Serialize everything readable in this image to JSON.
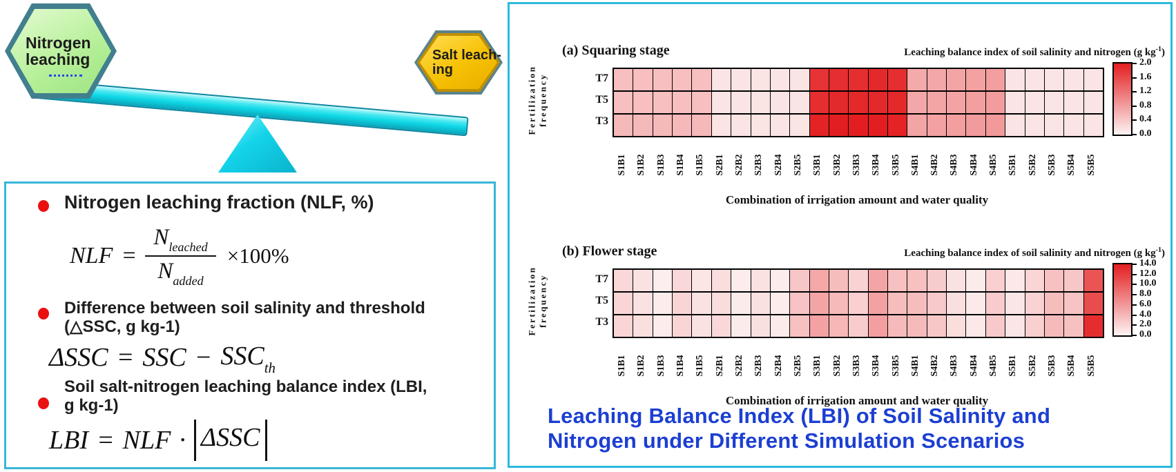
{
  "colors": {
    "panel_border": "#2cb9dd",
    "box_border": "#38b6d9",
    "caption": "#1c3fd2",
    "bullet_dot": "#ea1010",
    "heat_low": "#fdf4f4",
    "heat_high": "#e31e20",
    "plank_fill": "#10d9e6",
    "plank_border": "#0d87a0",
    "fulcrum_fill": "#14d4ea",
    "hex_green_fill": "#b4ef97",
    "hex_green_border": "#417f8e",
    "hex_gold_fill": "#f6c103",
    "hex_gold_border": "#c08f00"
  },
  "seesaw": {
    "left_line1": "Nitrogen",
    "left_line2": "leaching",
    "right_line1": "Salt leach-",
    "right_line2": "ing"
  },
  "info_box": {
    "bullets": [
      {
        "lines": [
          "Nitrogen leaching fraction (NLF, %)"
        ]
      },
      {
        "lines": [
          "Difference between soil salinity and threshold",
          "(△SSC, g kg-1)"
        ]
      },
      {
        "lines": [
          "Soil salt-nitrogen leaching balance index (LBI,",
          "g kg-1)"
        ]
      }
    ],
    "formulas": {
      "nlf": {
        "lhs": "NLF",
        "eq": "=",
        "num_base": "N",
        "num_sub": "leached",
        "den_base": "N",
        "den_sub": "added",
        "tail": "×100%"
      },
      "ssc": {
        "lhs": "ΔSSC",
        "eq": "=",
        "t1": "SSC",
        "op": "−",
        "t2": "SSC",
        "t2_sub": "th"
      },
      "lbi": {
        "lhs": "LBI",
        "eq": "=",
        "t1": "NLF",
        "op": "·",
        "abs_arg": "ΔSSC"
      }
    }
  },
  "caption": {
    "line1": "Leaching Balance Index (LBI) of Soil Salinity and",
    "line2": "Nitrogen under Different Simulation Scenarios"
  },
  "chart_data": [
    {
      "type": "heatmap",
      "title": "(a) Squaring stage",
      "colorbar_title_main": "Leaching balance index of soil salinity and nitrogen (g kg",
      "colorbar_title_sup": "-1",
      "colorbar_title_close": ")",
      "xlabel": "Combination of irrigation amount and water quality",
      "ylabel_lines": [
        "Fertilization",
        "frequency"
      ],
      "rows": [
        "T7",
        "T5",
        "T3"
      ],
      "categories": [
        "S1B1",
        "S1B2",
        "S1B3",
        "S1B4",
        "S1B5",
        "S2B1",
        "S2B2",
        "S2B3",
        "S2B4",
        "S2B5",
        "S3B1",
        "S3B2",
        "S3B3",
        "S3B4",
        "S3B5",
        "S4B1",
        "S4B2",
        "S4B3",
        "S4B4",
        "S4B5",
        "S5B1",
        "S5B2",
        "S5B3",
        "S5B4",
        "S5B5"
      ],
      "series": [
        {
          "name": "T7",
          "values": [
            0.5,
            0.5,
            0.5,
            0.5,
            0.5,
            0.15,
            0.15,
            0.15,
            0.15,
            0.15,
            1.8,
            1.85,
            1.85,
            1.9,
            1.85,
            0.7,
            0.72,
            0.75,
            0.78,
            0.8,
            0.15,
            0.15,
            0.15,
            0.15,
            0.15
          ]
        },
        {
          "name": "T5",
          "values": [
            0.5,
            0.5,
            0.5,
            0.5,
            0.5,
            0.15,
            0.15,
            0.15,
            0.15,
            0.15,
            1.85,
            1.9,
            1.9,
            1.9,
            1.9,
            0.72,
            0.74,
            0.76,
            0.8,
            0.82,
            0.15,
            0.15,
            0.15,
            0.15,
            0.15
          ]
        },
        {
          "name": "T3",
          "values": [
            0.55,
            0.55,
            0.55,
            0.55,
            0.55,
            0.15,
            0.15,
            0.15,
            0.15,
            0.15,
            1.95,
            2.0,
            2.0,
            2.0,
            1.95,
            0.75,
            0.78,
            0.8,
            0.83,
            0.85,
            0.15,
            0.15,
            0.15,
            0.15,
            0.15
          ]
        }
      ],
      "vmin": 0.0,
      "vmax": 2.0,
      "colorbar_ticks": [
        "2.0",
        "1.6",
        "1.2",
        "0.8",
        "0.4",
        "0.0"
      ]
    },
    {
      "type": "heatmap",
      "title": "(b) Flower stage",
      "colorbar_title_main": "Leaching balance index of soil salinity and nitrogen (g kg",
      "colorbar_title_sup": "-1",
      "colorbar_title_close": ")",
      "xlabel": "Combination of irrigation amount and water quality",
      "ylabel_lines": [
        "Fertilization",
        "frequency"
      ],
      "rows": [
        "T7",
        "T5",
        "T3"
      ],
      "categories": [
        "S1B1",
        "S1B2",
        "S1B3",
        "S1B4",
        "S1B5",
        "S2B1",
        "S2B2",
        "S2B3",
        "S2B4",
        "S2B5",
        "S3B1",
        "S3B2",
        "S3B3",
        "S3B4",
        "S3B5",
        "S4B1",
        "S4B2",
        "S4B3",
        "S4B4",
        "S4B5",
        "S5B1",
        "S5B2",
        "S5B3",
        "S5B4",
        "S5B5"
      ],
      "series": [
        {
          "name": "T7",
          "values": [
            1.8,
            1.2,
            0.4,
            1.8,
            1.0,
            1.5,
            0.5,
            1.2,
            0.5,
            3.0,
            5.0,
            3.6,
            2.2,
            5.2,
            3.4,
            3.4,
            2.6,
            1.2,
            0.6,
            2.4,
            0.8,
            2.0,
            3.4,
            3.0,
            10.5
          ]
        },
        {
          "name": "T5",
          "values": [
            2.0,
            1.2,
            0.5,
            2.0,
            1.2,
            1.6,
            0.6,
            1.3,
            0.5,
            3.2,
            5.2,
            3.8,
            2.4,
            5.4,
            3.6,
            3.6,
            2.8,
            1.4,
            0.7,
            2.6,
            0.9,
            2.2,
            3.6,
            3.2,
            11.0
          ]
        },
        {
          "name": "T3",
          "values": [
            2.0,
            1.4,
            0.5,
            2.0,
            1.2,
            1.8,
            0.6,
            1.4,
            0.6,
            3.4,
            5.4,
            4.0,
            2.6,
            5.6,
            3.8,
            3.8,
            3.0,
            1.5,
            0.8,
            2.8,
            1.0,
            2.4,
            3.8,
            3.4,
            13.0
          ]
        }
      ],
      "vmin": 0.0,
      "vmax": 14.0,
      "colorbar_ticks": [
        "14.0",
        "12.0",
        "10.0",
        "8.0",
        "6.0",
        "4.0",
        "2.0",
        "0.0"
      ]
    }
  ]
}
